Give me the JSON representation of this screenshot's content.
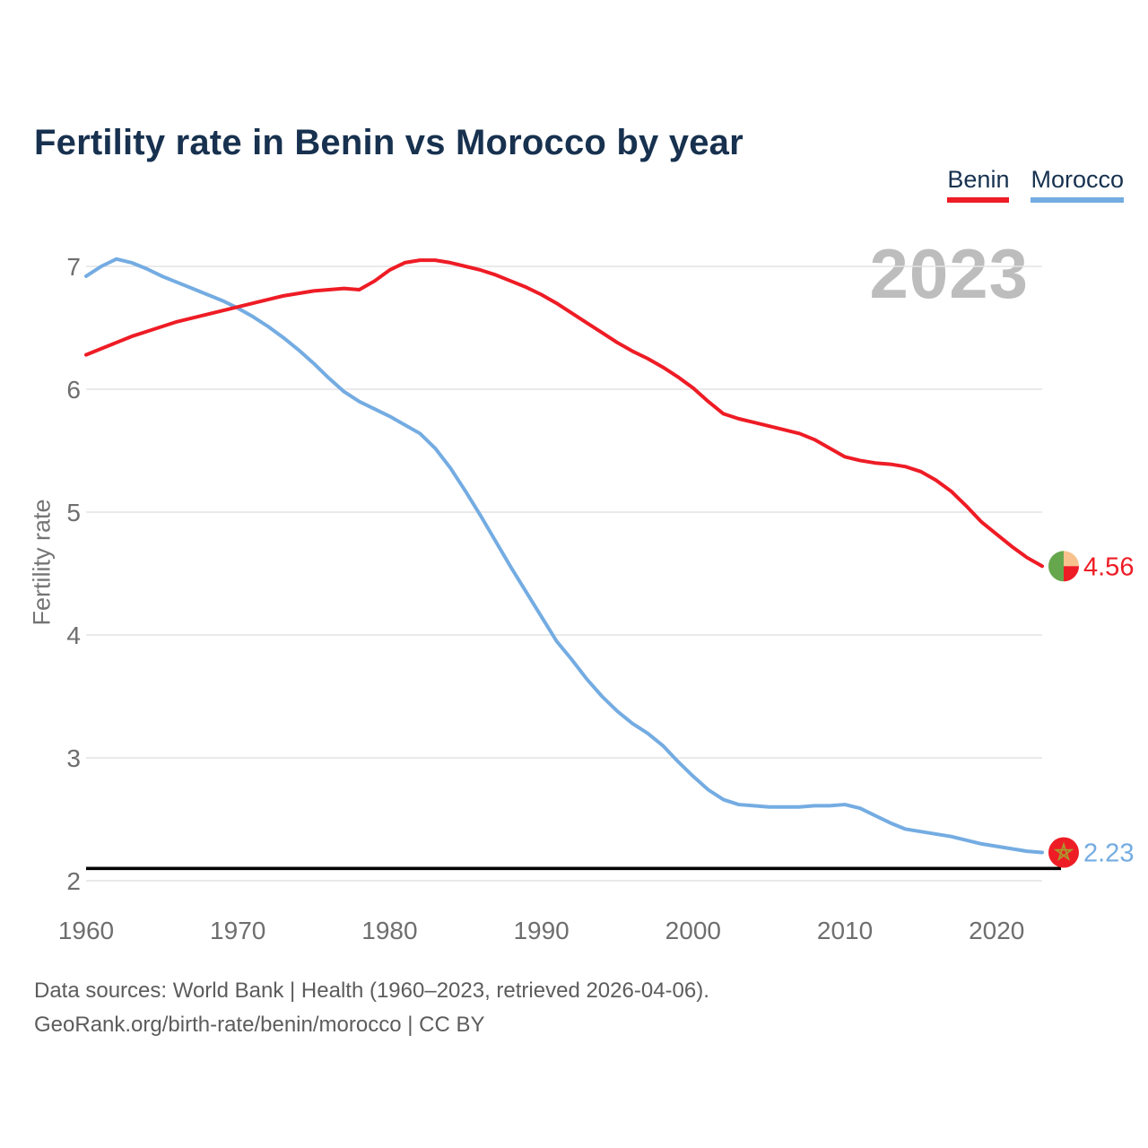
{
  "title": "Fertility rate in Benin vs Morocco by year",
  "watermark": "2023",
  "ylabel": "Fertility rate",
  "legend": [
    {
      "label": "Benin",
      "color": "#ee1c25"
    },
    {
      "label": "Morocco",
      "color": "#74ace2"
    }
  ],
  "footer": {
    "line1": "Data sources: World Bank | Health (1960–2023, retrieved 2026-04-06).",
    "line2": "GeoRank.org/birth-rate/benin/morocco | CC BY"
  },
  "flags": {
    "benin": {
      "green": "#66a74e",
      "yellow": "#f7c28e",
      "red": "#ee1c25"
    },
    "morocco": {
      "red": "#ee1c25",
      "star": "#a8992e"
    }
  },
  "chart_data": {
    "type": "line",
    "xlabel": "",
    "ylabel": "Fertility rate",
    "x_range": [
      1960,
      2023
    ],
    "ylim": [
      2,
      7.1
    ],
    "grid": true,
    "legend_position": "top-right",
    "xticks": [
      1960,
      1970,
      1980,
      1990,
      2000,
      2010,
      2020
    ],
    "yticks": [
      2,
      3,
      4,
      5,
      6,
      7
    ],
    "reference_line": {
      "value": 2.1,
      "color": "#000000",
      "label": ""
    },
    "years": [
      1960,
      1961,
      1962,
      1963,
      1964,
      1965,
      1966,
      1967,
      1968,
      1969,
      1970,
      1971,
      1972,
      1973,
      1974,
      1975,
      1976,
      1977,
      1978,
      1979,
      1980,
      1981,
      1982,
      1983,
      1984,
      1985,
      1986,
      1987,
      1988,
      1989,
      1990,
      1991,
      1992,
      1993,
      1994,
      1995,
      1996,
      1997,
      1998,
      1999,
      2000,
      2001,
      2002,
      2003,
      2004,
      2005,
      2006,
      2007,
      2008,
      2009,
      2010,
      2011,
      2012,
      2013,
      2014,
      2015,
      2016,
      2017,
      2018,
      2019,
      2020,
      2021,
      2022,
      2023
    ],
    "series": [
      {
        "name": "Benin",
        "color": "#ee1c25",
        "end_label": "4.56",
        "values": [
          6.28,
          6.33,
          6.38,
          6.43,
          6.47,
          6.51,
          6.55,
          6.58,
          6.61,
          6.64,
          6.67,
          6.7,
          6.73,
          6.76,
          6.78,
          6.8,
          6.81,
          6.82,
          6.81,
          6.88,
          6.97,
          7.03,
          7.05,
          7.05,
          7.03,
          7.0,
          6.97,
          6.93,
          6.88,
          6.83,
          6.77,
          6.7,
          6.62,
          6.54,
          6.46,
          6.38,
          6.31,
          6.25,
          6.18,
          6.1,
          6.01,
          5.9,
          5.8,
          5.76,
          5.73,
          5.7,
          5.67,
          5.64,
          5.59,
          5.52,
          5.45,
          5.42,
          5.4,
          5.39,
          5.37,
          5.33,
          5.26,
          5.17,
          5.05,
          4.92,
          4.82,
          4.72,
          4.63,
          4.56
        ]
      },
      {
        "name": "Morocco",
        "color": "#74ace2",
        "end_label": "2.23",
        "values": [
          6.92,
          7.0,
          7.06,
          7.03,
          6.98,
          6.92,
          6.87,
          6.82,
          6.77,
          6.72,
          6.66,
          6.59,
          6.51,
          6.42,
          6.32,
          6.21,
          6.09,
          5.98,
          5.9,
          5.84,
          5.78,
          5.71,
          5.64,
          5.52,
          5.36,
          5.17,
          4.97,
          4.76,
          4.55,
          4.35,
          4.15,
          3.95,
          3.8,
          3.64,
          3.5,
          3.38,
          3.28,
          3.2,
          3.1,
          2.97,
          2.85,
          2.74,
          2.66,
          2.62,
          2.61,
          2.6,
          2.6,
          2.6,
          2.61,
          2.61,
          2.62,
          2.59,
          2.53,
          2.47,
          2.42,
          2.4,
          2.38,
          2.36,
          2.33,
          2.3,
          2.28,
          2.26,
          2.24,
          2.23
        ]
      }
    ]
  }
}
